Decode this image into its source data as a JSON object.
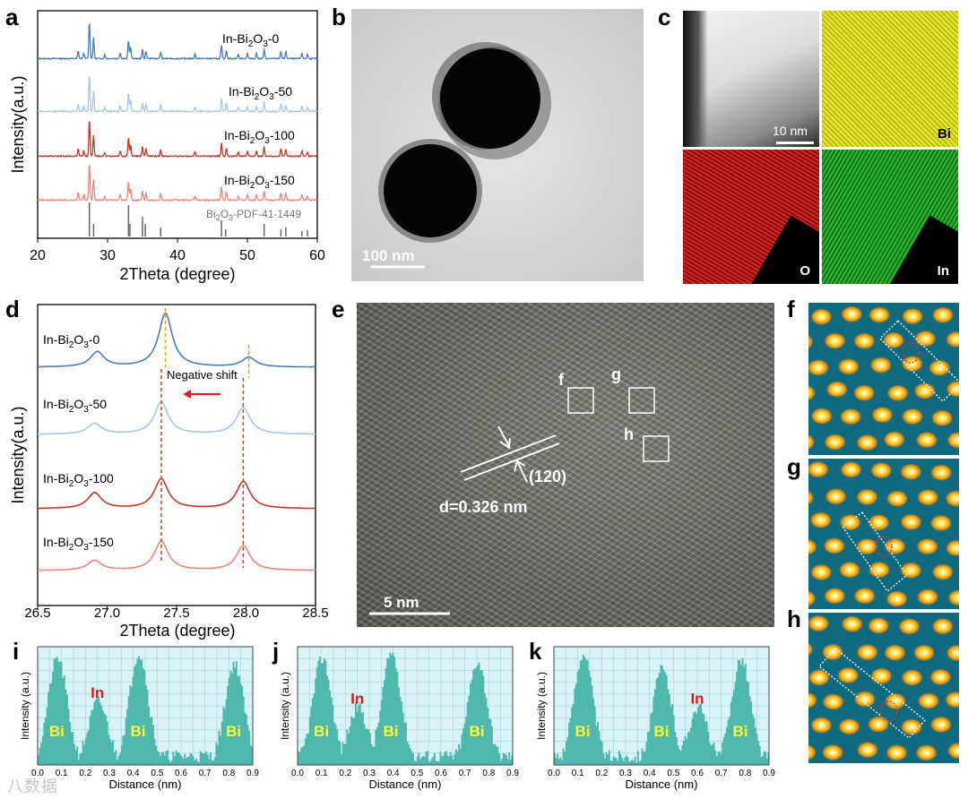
{
  "panel_labels": {
    "a": "a",
    "b": "b",
    "c": "c",
    "d": "d",
    "e": "e",
    "f": "f",
    "g": "g",
    "h": "h",
    "i": "i",
    "j": "j",
    "k": "k"
  },
  "colors": {
    "s0": "#4a7db5",
    "s50": "#a8c6e3",
    "s100": "#c0392b",
    "s150": "#e8877c",
    "pdf": "#666666",
    "profile_fill": "#4fb8ad",
    "profile_bg": "#d9f3f6",
    "bi_map": "#e0e021",
    "o_map": "#cc1e1e",
    "in_map": "#22a62a",
    "dashed": "#e8a000"
  },
  "chart_data": [
    {
      "id": "a",
      "type": "line",
      "title": "",
      "xlabel": "2Theta (degree)",
      "ylabel": "Intensity(a.u.)",
      "xlim": [
        20,
        60
      ],
      "xticks": [
        20,
        30,
        40,
        50,
        60
      ],
      "reference": "Bi2O3-PDF-41-1449",
      "ref_peaks": [
        27.4,
        28.0,
        33.0,
        33.2,
        35.0,
        35.4,
        37.6,
        46.3,
        46.9,
        52.4,
        54.8,
        55.5,
        57.8,
        58.6
      ],
      "series": [
        {
          "name": "In-Bi2O3-0",
          "color_key": "s0"
        },
        {
          "name": "In-Bi2O3-50",
          "color_key": "s50"
        },
        {
          "name": "In-Bi2O3-100",
          "color_key": "s100"
        },
        {
          "name": "In-Bi2O3-150",
          "color_key": "s150"
        }
      ]
    },
    {
      "id": "d",
      "type": "line",
      "title": "",
      "xlabel": "2Theta (degree)",
      "ylabel": "Intensity(a.u.)",
      "xlim": [
        26.5,
        28.5
      ],
      "xticks": [
        26.5,
        27.0,
        27.5,
        28.0,
        28.5
      ],
      "annotation": "Negative shift",
      "series": [
        {
          "name": "In-Bi2O3-0",
          "color_key": "s0",
          "peaks": [
            26.93,
            27.42,
            28.02
          ]
        },
        {
          "name": "In-Bi2O3-50",
          "color_key": "s50",
          "peaks": [
            26.91,
            27.39,
            27.98
          ]
        },
        {
          "name": "In-Bi2O3-100",
          "color_key": "s100",
          "peaks": [
            26.91,
            27.39,
            27.98
          ]
        },
        {
          "name": "In-Bi2O3-150",
          "color_key": "s150",
          "peaks": [
            26.91,
            27.39,
            27.98
          ]
        }
      ]
    },
    {
      "id": "i",
      "type": "bar",
      "xlabel": "Distance (nm)",
      "ylabel": "Intensity (a.u.)",
      "xlim": [
        0,
        0.9
      ],
      "xticks": [
        "0.0",
        "0.1",
        "0.2",
        "0.3",
        "0.4",
        "0.5",
        "0.6",
        "0.7",
        "0.8",
        "0.9"
      ],
      "labels": [
        "Bi",
        "In",
        "Bi",
        "Bi"
      ],
      "peaks": [
        [
          0.08,
          0.95
        ],
        [
          0.25,
          0.55
        ],
        [
          0.42,
          1.0
        ],
        [
          0.82,
          0.9
        ]
      ]
    },
    {
      "id": "j",
      "type": "bar",
      "xlabel": "Distance (nm)",
      "ylabel": "Intensity (a.u.)",
      "xlim": [
        0,
        0.9
      ],
      "xticks": [
        "0.0",
        "0.1",
        "0.2",
        "0.3",
        "0.4",
        "0.5",
        "0.6",
        "0.7",
        "0.8",
        "0.9"
      ],
      "labels": [
        "Bi",
        "In",
        "Bi",
        "Bi"
      ],
      "peaks": [
        [
          0.1,
          0.95
        ],
        [
          0.25,
          0.5
        ],
        [
          0.39,
          1.0
        ],
        [
          0.75,
          0.92
        ]
      ]
    },
    {
      "id": "k",
      "type": "bar",
      "xlabel": "Distance (nm)",
      "ylabel": "Intensity (a.u.)",
      "xlim": [
        0,
        0.9
      ],
      "xticks": [
        "0.0",
        "0.1",
        "0.2",
        "0.3",
        "0.4",
        "0.5",
        "0.6",
        "0.7",
        "0.8",
        "0.9"
      ],
      "labels": [
        "Bi",
        "Bi",
        "In",
        "Bi"
      ],
      "peaks": [
        [
          0.12,
          1.0
        ],
        [
          0.45,
          0.85
        ],
        [
          0.6,
          0.5
        ],
        [
          0.78,
          0.95
        ]
      ]
    }
  ],
  "panel_b": {
    "scale": "100 nm"
  },
  "panel_c": {
    "scale": "10 nm",
    "maps": [
      "Bi",
      "O",
      "In"
    ]
  },
  "panel_e": {
    "scale": "5 nm",
    "plane": "(120)",
    "dspacing": "d=0.326 nm",
    "boxes": [
      "f",
      "g",
      "h"
    ]
  },
  "watermark": "八数据"
}
